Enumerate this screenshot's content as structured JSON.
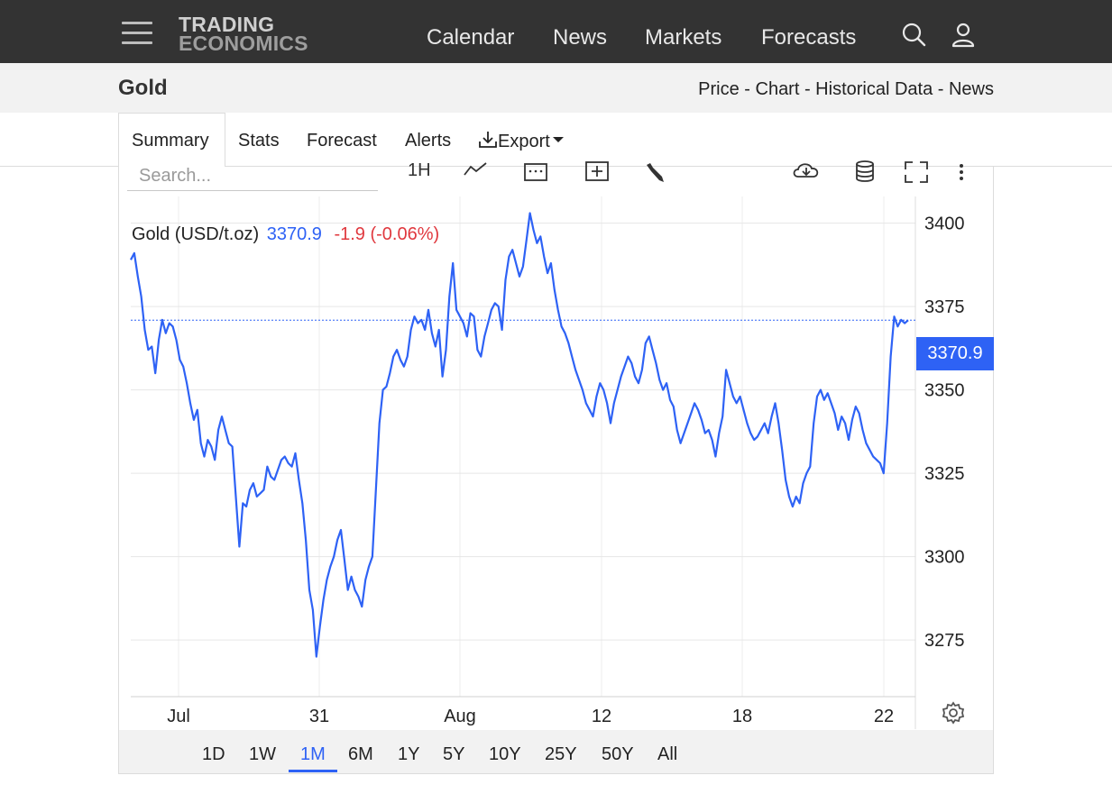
{
  "brand": {
    "line1": "TRADING",
    "line2": "ECONOMICS"
  },
  "nav": {
    "items": [
      "Calendar",
      "News",
      "Markets",
      "Forecasts"
    ]
  },
  "icons": {
    "menu": "hamburger-menu-icon",
    "search": "search-icon",
    "user": "user-icon"
  },
  "page": {
    "title": "Gold",
    "sublinks": "Price - Chart - Historical Data - News"
  },
  "tabs": {
    "summary": "Summary",
    "stats": "Stats",
    "forecast": "Forecast",
    "alerts": "Alerts",
    "export": "Export"
  },
  "toolbar": {
    "search_placeholder": "Search...",
    "interval": "1H"
  },
  "legend": {
    "name": "Gold (USD/t.oz)",
    "price": "3370.9",
    "change": "-1.9 (-0.06%)"
  },
  "price_tag": "3370.9",
  "periods": [
    "1D",
    "1W",
    "1M",
    "6M",
    "1Y",
    "5Y",
    "10Y",
    "25Y",
    "50Y",
    "All"
  ],
  "active_period": "1M",
  "colors": {
    "series": "#2e62f5",
    "negative": "#e0383e",
    "topbar": "#333333"
  },
  "chart_data": {
    "type": "line",
    "title": "Gold (USD/t.oz)",
    "xlabel": "",
    "ylabel": "",
    "x_ticks": [
      "Jul",
      "31",
      "Aug",
      "12",
      "18",
      "22"
    ],
    "y_ticks": [
      3275,
      3300,
      3325,
      3350,
      3375,
      3400
    ],
    "ylim": [
      3258,
      3408
    ],
    "last_value": 3370.9,
    "grid": true,
    "series": [
      {
        "name": "Gold (USD/t.oz)",
        "values": [
          3389,
          3391,
          3384,
          3378,
          3368,
          3362,
          3363,
          3355,
          3365,
          3371,
          3367,
          3370,
          3369,
          3365,
          3359,
          3357,
          3352,
          3346,
          3341,
          3344,
          3334,
          3330,
          3335,
          3333,
          3329,
          3338,
          3342,
          3338,
          3334,
          3333,
          3318,
          3303,
          3316,
          3315,
          3320,
          3322,
          3318,
          3319,
          3320,
          3327,
          3324,
          3323,
          3326,
          3329,
          3330,
          3328,
          3327,
          3331,
          3323,
          3316,
          3305,
          3290,
          3284,
          3270,
          3279,
          3287,
          3293,
          3297,
          3300,
          3305,
          3308,
          3299,
          3290,
          3294,
          3290,
          3288,
          3285,
          3293,
          3297,
          3300,
          3320,
          3340,
          3350,
          3351,
          3355,
          3360,
          3362,
          3359,
          3357,
          3360,
          3368,
          3372,
          3370,
          3371,
          3368,
          3374,
          3367,
          3363,
          3368,
          3354,
          3362,
          3378,
          3388,
          3374,
          3372,
          3370,
          3366,
          3373,
          3372,
          3362,
          3360,
          3366,
          3370,
          3374,
          3376,
          3375,
          3368,
          3383,
          3390,
          3392,
          3388,
          3384,
          3387,
          3395,
          3403,
          3398,
          3394,
          3396,
          3390,
          3385,
          3388,
          3380,
          3374,
          3369,
          3367,
          3364,
          3360,
          3356,
          3353,
          3350,
          3346,
          3344,
          3342,
          3348,
          3352,
          3350,
          3346,
          3340,
          3346,
          3350,
          3354,
          3357,
          3360,
          3358,
          3354,
          3352,
          3356,
          3364,
          3366,
          3362,
          3358,
          3353,
          3350,
          3352,
          3347,
          3345,
          3338,
          3334,
          3337,
          3340,
          3343,
          3346,
          3344,
          3341,
          3337,
          3338,
          3335,
          3330,
          3337,
          3342,
          3356,
          3352,
          3348,
          3346,
          3348,
          3344,
          3340,
          3337,
          3335,
          3336,
          3338,
          3340,
          3337,
          3342,
          3346,
          3340,
          3332,
          3323,
          3318,
          3315,
          3318,
          3316,
          3322,
          3325,
          3327,
          3340,
          3348,
          3350,
          3347,
          3349,
          3346,
          3343,
          3338,
          3342,
          3340,
          3335,
          3341,
          3345,
          3343,
          3338,
          3334,
          3332,
          3330,
          3329,
          3328,
          3325,
          3340,
          3360,
          3372,
          3369,
          3371,
          3370,
          3370.9
        ]
      }
    ]
  }
}
